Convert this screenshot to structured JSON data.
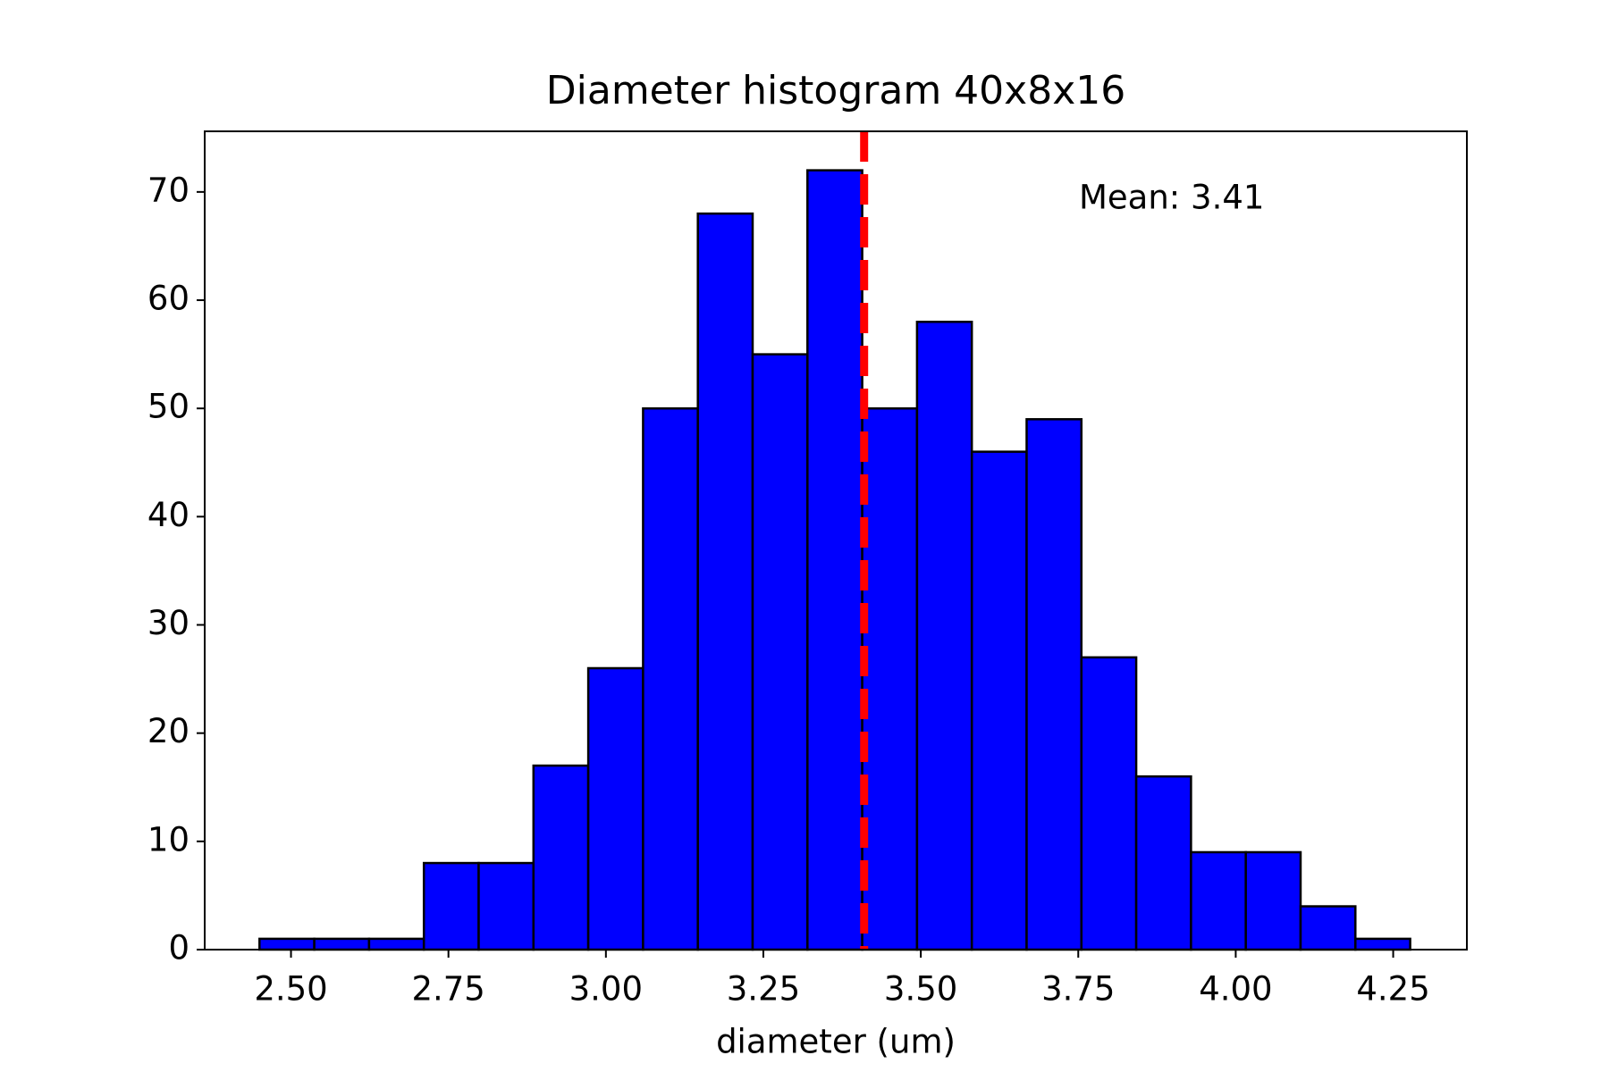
{
  "chart_data": {
    "type": "histogram",
    "title": "Diameter histogram 40x8x16",
    "xlabel": "diameter (um)",
    "bins": [
      2.45,
      2.537,
      2.624,
      2.711,
      2.798,
      2.885,
      2.972,
      3.059,
      3.146,
      3.233,
      3.32,
      3.407,
      3.494,
      3.581,
      3.668,
      3.755,
      3.842,
      3.929,
      4.016,
      4.103,
      4.19,
      4.277
    ],
    "values": [
      1,
      1,
      1,
      8,
      8,
      17,
      26,
      50,
      68,
      55,
      72,
      50,
      58,
      46,
      49,
      27,
      16,
      9,
      9,
      4,
      1
    ],
    "color": "#0000ff",
    "edgecolor": "#000000",
    "mean": 3.41,
    "mean_color": "#ff0000",
    "annotation": "Mean: 3.41",
    "xlim": [
      2.363,
      4.367
    ],
    "ylim": [
      0,
      75.6
    ],
    "xticks": [
      {
        "value": 2.5,
        "label": "2.50"
      },
      {
        "value": 2.75,
        "label": "2.75"
      },
      {
        "value": 3.0,
        "label": "3.00"
      },
      {
        "value": 3.25,
        "label": "3.25"
      },
      {
        "value": 3.5,
        "label": "3.50"
      },
      {
        "value": 3.75,
        "label": "3.75"
      },
      {
        "value": 4.0,
        "label": "4.00"
      },
      {
        "value": 4.25,
        "label": "4.25"
      }
    ],
    "yticks": [
      0,
      10,
      20,
      30,
      40,
      50,
      60,
      70
    ]
  }
}
